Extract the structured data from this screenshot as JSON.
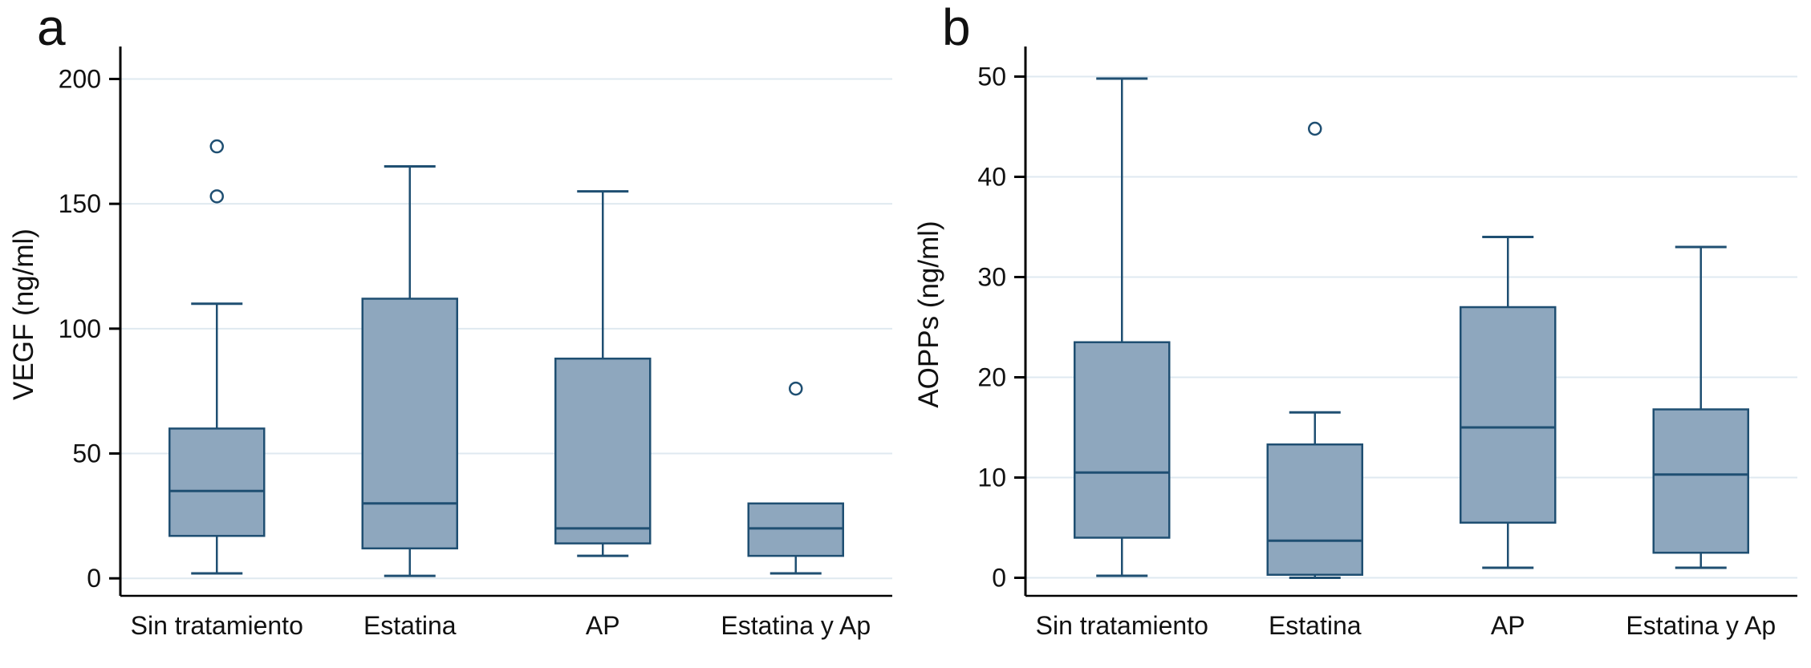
{
  "style": {
    "background": "#FFFFFF",
    "box_fill": "#8EA7BE",
    "box_stroke": "#1F4F72",
    "grid_color": "#DFE9F0",
    "axis_color": "#000000",
    "outlier_fill": "#FFFFFF"
  },
  "chart_data": [
    {
      "type": "box",
      "panel_label": "a",
      "title": "",
      "xlabel": "",
      "ylabel": "VEGF (ng/ml)",
      "ylim": [
        -7,
        213
      ],
      "yticks": [
        0,
        50,
        100,
        150,
        200
      ],
      "grid": true,
      "legend": false,
      "categories": [
        "Sin tratamiento",
        "Estatina",
        "AP",
        "Estatina y Ap"
      ],
      "boxes": [
        {
          "category": "Sin tratamiento",
          "whisker_low": 2,
          "q1": 17,
          "median": 35,
          "q3": 60,
          "whisker_high": 110,
          "outliers": [
            153,
            173
          ]
        },
        {
          "category": "Estatina",
          "whisker_low": 1,
          "q1": 12,
          "median": 30,
          "q3": 112,
          "whisker_high": 165,
          "outliers": []
        },
        {
          "category": "AP",
          "whisker_low": 9,
          "q1": 14,
          "median": 20,
          "q3": 88,
          "whisker_high": 155,
          "outliers": []
        },
        {
          "category": "Estatina y Ap",
          "whisker_low": 2,
          "q1": 9,
          "median": 20,
          "q3": 30,
          "whisker_high": 30,
          "outliers": [
            76
          ]
        }
      ]
    },
    {
      "type": "box",
      "panel_label": "b",
      "title": "",
      "xlabel": "",
      "ylabel": "AOPPs (ng/ml)",
      "ylim": [
        -1.8,
        53
      ],
      "yticks": [
        0,
        10,
        20,
        30,
        40,
        50
      ],
      "grid": true,
      "legend": false,
      "categories": [
        "Sin tratamiento",
        "Estatina",
        "AP",
        "Estatina y Ap"
      ],
      "boxes": [
        {
          "category": "Sin tratamiento",
          "whisker_low": 0.2,
          "q1": 4,
          "median": 10.5,
          "q3": 23.5,
          "whisker_high": 49.8,
          "outliers": []
        },
        {
          "category": "Estatina",
          "whisker_low": 0,
          "q1": 0.3,
          "median": 3.7,
          "q3": 13.3,
          "whisker_high": 16.5,
          "outliers": [
            44.8
          ]
        },
        {
          "category": "AP",
          "whisker_low": 1,
          "q1": 5.5,
          "median": 15,
          "q3": 27,
          "whisker_high": 34,
          "outliers": []
        },
        {
          "category": "Estatina y Ap",
          "whisker_low": 1,
          "q1": 2.5,
          "median": 10.3,
          "q3": 16.8,
          "whisker_high": 33,
          "outliers": []
        }
      ]
    }
  ]
}
